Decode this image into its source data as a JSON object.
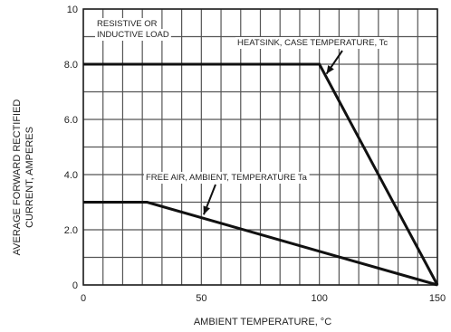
{
  "chart_data": {
    "type": "line",
    "title": "",
    "xlabel": "AMBIENT TEMPERATURE, °C",
    "ylabel_lines": [
      "AVERAGE FORWARD RECTIFIED",
      "CURRENT, AMPERES"
    ],
    "xlim": [
      0,
      150
    ],
    "ylim": [
      0,
      10
    ],
    "x_ticks": [
      0,
      50,
      100,
      150
    ],
    "x_tick_labels": [
      "0",
      "50",
      "100",
      "150"
    ],
    "y_ticks": [
      0,
      2,
      4,
      6,
      8,
      10
    ],
    "y_tick_labels": [
      "0",
      "2.0",
      "4.0",
      "6.0",
      "8.0",
      "10"
    ],
    "grid": true,
    "grid_x_step": 8.33,
    "grid_y_step": 1,
    "series": [
      {
        "x": [
          0,
          100,
          150
        ],
        "y": [
          8,
          8,
          0
        ]
      },
      {
        "x": [
          0,
          27,
          150
        ],
        "y": [
          3,
          3,
          0
        ]
      }
    ],
    "annotations": [
      {
        "text_lines": [
          "RESISTIVE OR",
          "INDUCTIVE LOAD"
        ]
      },
      {
        "text_lines": [
          "HEATSINK, CASE TEMPERATURE, Tc"
        ]
      },
      {
        "text_lines": [
          "FREE AIR, AMBIENT, TEMPERATURE Ta"
        ]
      }
    ]
  }
}
